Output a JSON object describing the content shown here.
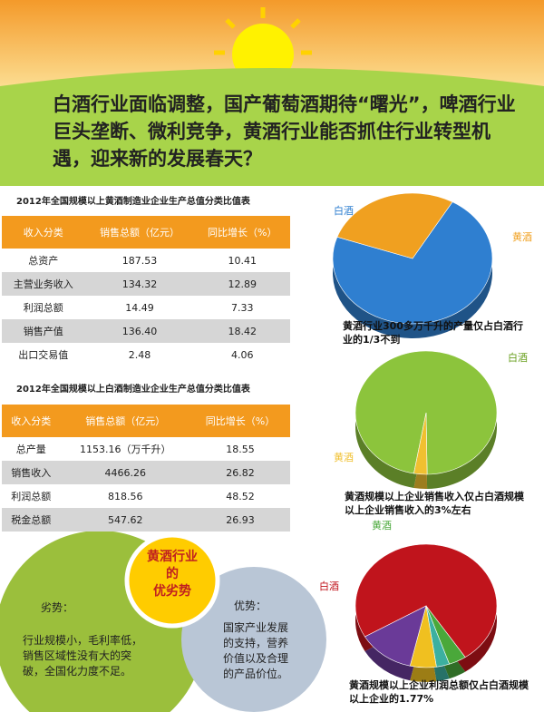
{
  "headline": "白酒行业面临调整，国产葡萄酒期待“曙光”，啤酒行业巨头垄断、微利竞争，黄酒行业能否抓住行业转型机遇，迎来新的发展春天？",
  "tables": [
    {
      "title": "2012年全国规模以上黄酒制造业企业生产总值分类比值表",
      "headers": [
        "收入分类",
        "销售总额（亿元）",
        "同比增长（%）"
      ],
      "rows": [
        [
          "总资产",
          "187.53",
          "10.41"
        ],
        [
          "主营业务收入",
          "134.32",
          "12.89"
        ],
        [
          "利润总额",
          "14.49",
          "7.33"
        ],
        [
          "销售产值",
          "136.40",
          "18.42"
        ],
        [
          "出口交易值",
          "2.48",
          "4.06"
        ]
      ]
    },
    {
      "title": "2012年全国规模以上白酒制造业企业生产总值分类比值表",
      "headers": [
        "收入分类",
        "销售总额（亿元）",
        "同比增长（%）"
      ],
      "rows": [
        [
          "总产量",
          "1153.16（万千升）",
          "18.55"
        ],
        [
          "销售收入",
          "4466.26",
          "26.82"
        ],
        [
          "利润总额",
          "818.56",
          "48.52"
        ],
        [
          "税金总额",
          "547.62",
          "26.93"
        ]
      ]
    }
  ],
  "pies": [
    {
      "labels": [
        "白酒",
        "黄酒"
      ],
      "values": [
        72,
        28
      ],
      "colors": [
        "#2f7fd0",
        "#f0a020"
      ],
      "caption": "黄酒行业300多万千升的产量仅占白酒行业的1/3不到"
    },
    {
      "labels": [
        "白酒",
        "黄酒"
      ],
      "values": [
        97,
        3
      ],
      "colors": [
        "#8cc43c",
        "#f0c030"
      ],
      "caption": "黄酒规模以上企业销售收入仅占白酒规模以上企业销售收入的3%左右"
    },
    {
      "labels": [
        "白酒",
        "黄酒",
        null,
        null,
        null
      ],
      "values": [
        74,
        4,
        3,
        6,
        13
      ],
      "colors": [
        "#c0141c",
        "#4aa83a",
        "#3cb0a0",
        "#f0c020",
        "#6a3a98"
      ],
      "caption": "黄酒规模以上企业利润总额仅占白酒规模以上企业的1.77%"
    }
  ],
  "analysis": {
    "title": [
      "黄酒行业",
      "的",
      "优劣势"
    ],
    "weakness": {
      "heading": "劣势：",
      "text": "行业规模小，毛利率低，销售区域性没有大的突破，全国化力度不足。"
    },
    "strength": {
      "heading": "优势：",
      "text": "国家产业发展的支持，营养价值以及合理的产品价位。"
    }
  }
}
